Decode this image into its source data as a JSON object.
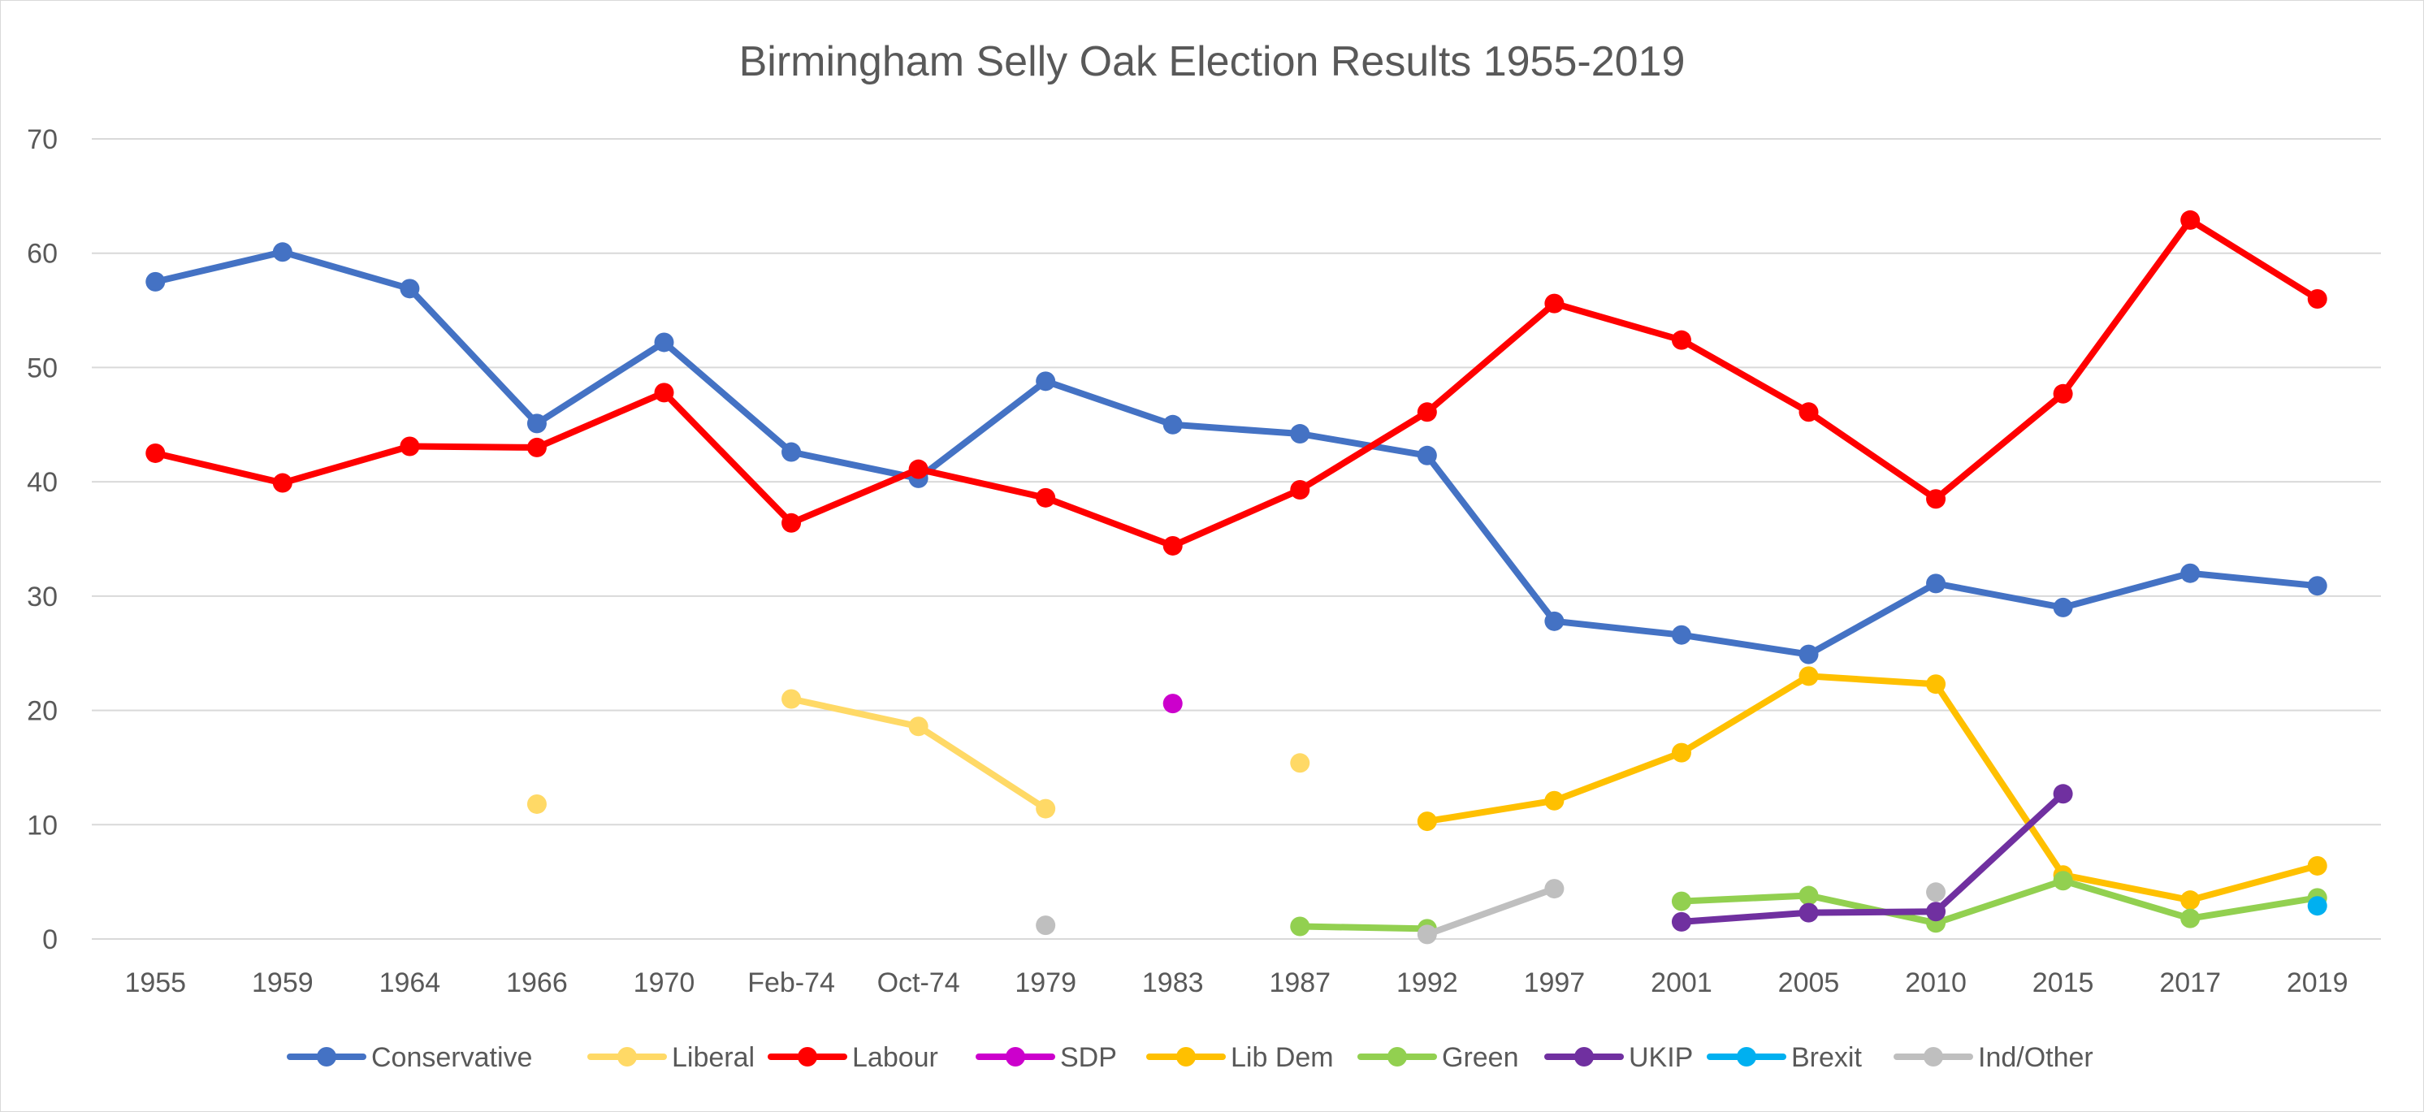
{
  "chart_data": {
    "type": "line",
    "title": "Birmingham Selly Oak Election Results 1955-2019",
    "xlabel": "",
    "ylabel": "",
    "ylim": [
      0,
      70
    ],
    "yticks": [
      0,
      10,
      20,
      30,
      40,
      50,
      60,
      70
    ],
    "grid": true,
    "legend_position": "bottom",
    "categories": [
      "1955",
      "1959",
      "1964",
      "1966",
      "1970",
      "Feb-74",
      "Oct-74",
      "1979",
      "1983",
      "1987",
      "1992",
      "1997",
      "2001",
      "2005",
      "2010",
      "2015",
      "2017",
      "2019"
    ],
    "series": [
      {
        "name": "Conservative",
        "color": "#4472C4",
        "values": [
          57.5,
          60.1,
          56.9,
          45.1,
          52.2,
          42.6,
          40.3,
          48.8,
          45.0,
          44.2,
          42.3,
          27.8,
          26.6,
          24.9,
          31.1,
          29.0,
          32.0,
          30.9
        ]
      },
      {
        "name": "Liberal",
        "color": "#FFD966",
        "values": [
          null,
          null,
          null,
          11.8,
          null,
          21.0,
          18.6,
          11.4,
          null,
          15.4,
          null,
          null,
          null,
          null,
          null,
          null,
          null,
          null
        ]
      },
      {
        "name": "Labour",
        "color": "#FF0000",
        "values": [
          42.5,
          39.9,
          43.1,
          43.0,
          47.8,
          36.4,
          41.1,
          38.6,
          34.4,
          39.3,
          46.1,
          55.6,
          52.4,
          46.1,
          38.5,
          47.7,
          62.9,
          56.0
        ]
      },
      {
        "name": "SDP",
        "color": "#CC00CC",
        "values": [
          null,
          null,
          null,
          null,
          null,
          null,
          null,
          null,
          20.6,
          null,
          null,
          null,
          null,
          null,
          null,
          null,
          null,
          null
        ]
      },
      {
        "name": "Lib Dem",
        "color": "#FFC000",
        "values": [
          null,
          null,
          null,
          null,
          null,
          null,
          null,
          null,
          null,
          null,
          10.3,
          12.1,
          16.3,
          23.0,
          22.3,
          5.6,
          3.4,
          6.4
        ]
      },
      {
        "name": "Green",
        "color": "#92D050",
        "values": [
          null,
          null,
          null,
          null,
          null,
          null,
          null,
          null,
          null,
          1.1,
          0.9,
          null,
          3.3,
          3.8,
          1.4,
          5.1,
          1.8,
          3.6
        ]
      },
      {
        "name": "UKIP",
        "color": "#7030A0",
        "values": [
          null,
          null,
          null,
          null,
          null,
          null,
          null,
          null,
          null,
          null,
          null,
          null,
          1.5,
          2.3,
          2.4,
          12.7,
          null,
          null
        ]
      },
      {
        "name": "Brexit",
        "color": "#00B0F0",
        "values": [
          null,
          null,
          null,
          null,
          null,
          null,
          null,
          null,
          null,
          null,
          null,
          null,
          null,
          null,
          null,
          null,
          null,
          2.9
        ]
      },
      {
        "name": "Ind/Other",
        "color": "#BFBFBF",
        "values": [
          null,
          null,
          null,
          null,
          null,
          null,
          null,
          1.2,
          null,
          null,
          0.4,
          4.4,
          null,
          null,
          4.1,
          null,
          null,
          null
        ]
      }
    ]
  }
}
